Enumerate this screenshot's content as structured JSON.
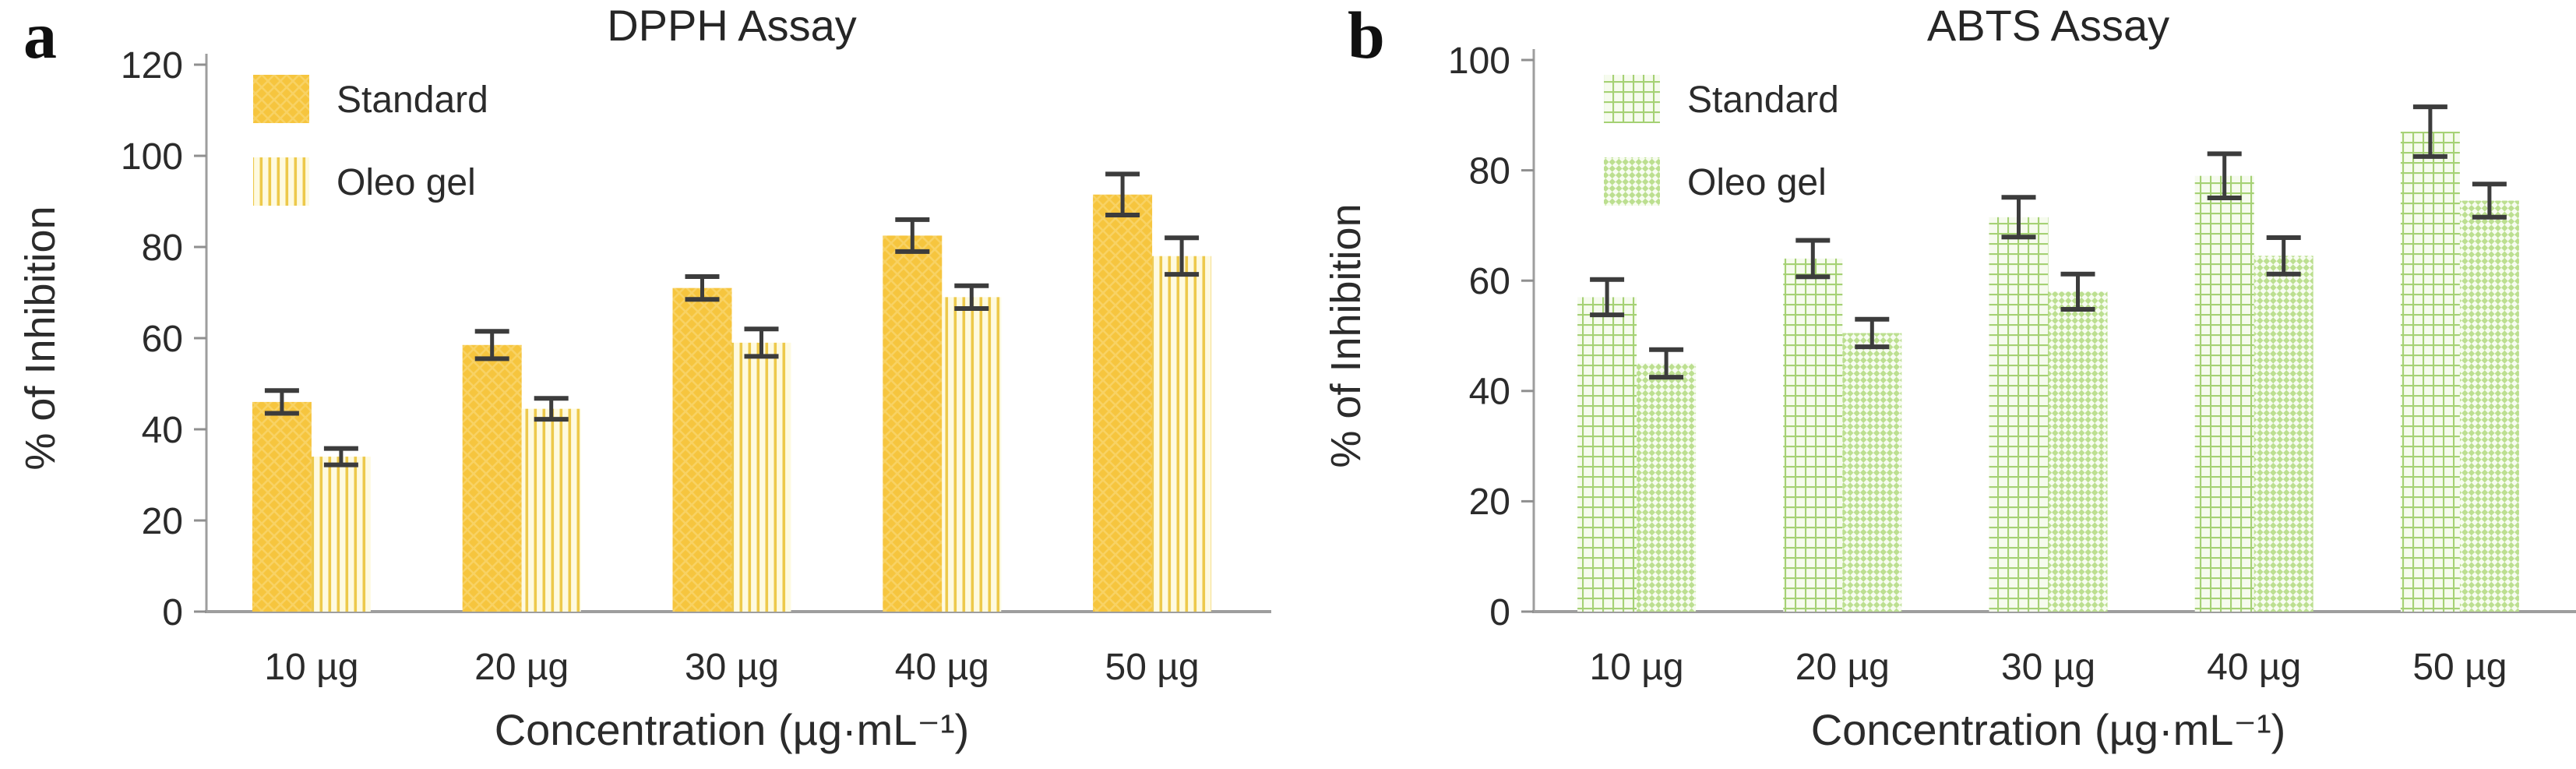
{
  "figure_name": "Antioxidant assay bar charts",
  "style": {
    "axis_color": "#9E9E9E",
    "tick_color": "#8F8F8F",
    "error_bar_color": "#3C3C3C",
    "text_color": "#2B2B2B",
    "title_color": "#262626",
    "background": "#FFFFFF"
  },
  "chart_data": [
    {
      "type": "bar",
      "panel_label": "a",
      "title": "DPPH Assay",
      "xlabel": "Concentration (µg·mL⁻¹)",
      "ylabel": "% of Inhibition",
      "ylim": [
        0,
        120
      ],
      "ytick_step": 20,
      "grid": false,
      "legend_position": "top-left-inside",
      "categories": [
        "10 µg",
        "20 µg",
        "30 µg",
        "40 µg",
        "50 µg"
      ],
      "series": [
        {
          "name": "Standard",
          "values": [
            46,
            58.5,
            71,
            82.5,
            91.5
          ],
          "errors": [
            2.5,
            3,
            2.5,
            3.5,
            4.5
          ],
          "fill": {
            "kind": "solid-crosshatch",
            "base": "#F6C53E",
            "line": "#FADD82"
          }
        },
        {
          "name": "Oleo gel",
          "values": [
            34,
            44.5,
            59,
            69,
            78
          ],
          "errors": [
            1.8,
            2.3,
            3,
            2.5,
            4
          ],
          "fill": {
            "kind": "vertical-stripes",
            "base": "#FEFAE0",
            "line": "#EDC94B"
          }
        }
      ]
    },
    {
      "type": "bar",
      "panel_label": "b",
      "title": "ABTS Assay",
      "xlabel": "Concentration (µg·mL⁻¹)",
      "ylabel": "% of Inhibition",
      "ylim": [
        0,
        100
      ],
      "ytick_step": 20,
      "grid": false,
      "legend_position": "top-left-inside",
      "categories": [
        "10 µg",
        "20 µg",
        "30 µg",
        "40 µg",
        "50 µg"
      ],
      "series": [
        {
          "name": "Standard",
          "values": [
            57,
            64,
            71.5,
            79,
            87
          ],
          "errors": [
            3.2,
            3.3,
            3.6,
            4,
            4.5
          ],
          "fill": {
            "kind": "grid",
            "base": "#F6FBEE",
            "line": "#A5D174"
          }
        },
        {
          "name": "Oleo gel",
          "values": [
            45,
            50.5,
            58,
            64.5,
            74.5
          ],
          "errors": [
            2.5,
            2.5,
            3.2,
            3.3,
            3
          ],
          "fill": {
            "kind": "diamond-checker",
            "base": "#F7FCF0",
            "line": "#BCDF90"
          }
        }
      ]
    }
  ]
}
